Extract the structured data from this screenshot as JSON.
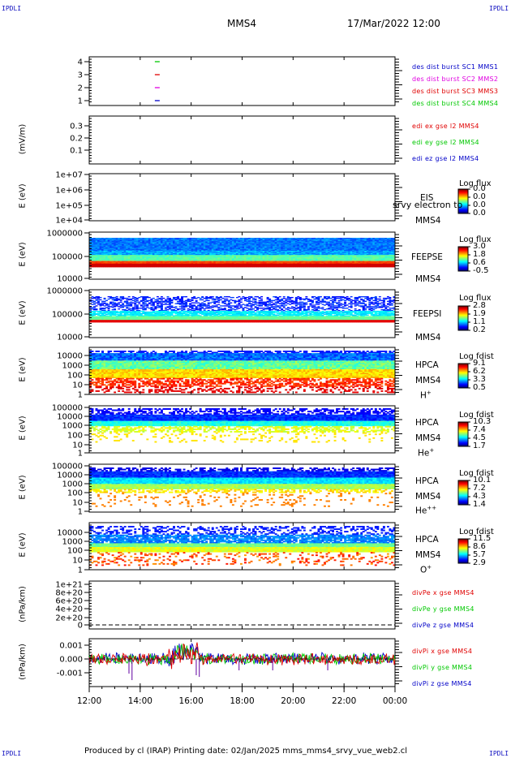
{
  "corners": {
    "tl": "IPDLI",
    "tr": "IPDLI",
    "bl": "IPDLI",
    "br": "IPDLI"
  },
  "header": {
    "spacecraft": "MMS4",
    "date": "17/Mar/2022 12:00"
  },
  "footer": {
    "text": "Produced by cl (IRAP)   Printing date: 02/Jan/2025   mms_mms4_srvy_vue_web2.cl"
  },
  "time_axis": {
    "ticks": [
      "12:00",
      "14:00",
      "16:00",
      "18:00",
      "20:00",
      "22:00",
      "00:00"
    ]
  },
  "colors": {
    "blue": "#0000c8",
    "magenta": "#e000e0",
    "red": "#e00000",
    "green": "#00c800"
  },
  "chart_data": [
    {
      "type": "scatter",
      "id": "burst",
      "ylim": [
        0.5,
        4.5
      ],
      "yticks": [
        "1",
        "2",
        "3",
        "4"
      ],
      "series": [
        {
          "name": "des dist burst SC1 MMS1",
          "color": "#0000c8",
          "x": [
            "14:40"
          ],
          "y": [
            1
          ]
        },
        {
          "name": "des dist burst SC2 MMS2",
          "color": "#e000e0",
          "x": [
            "14:40"
          ],
          "y": [
            2
          ]
        },
        {
          "name": "des dist burst SC3 MMS3",
          "color": "#e00000",
          "x": [
            "14:40"
          ],
          "y": [
            3
          ]
        },
        {
          "name": "des dist burst SC4 MMS4",
          "color": "#00c800",
          "x": [
            "14:40"
          ],
          "y": [
            4
          ]
        }
      ]
    },
    {
      "type": "line",
      "id": "edi",
      "ylabel": "(mV/m)",
      "yticks": [
        "0.1",
        "0.2",
        "0.3"
      ],
      "series": [
        {
          "name": "edi ex gse l2 MMS4",
          "color": "#e00000"
        },
        {
          "name": "edi ey gse l2 MMS4",
          "color": "#00c800"
        },
        {
          "name": "edi ez gse l2 MMS4",
          "color": "#0000c8"
        }
      ]
    },
    {
      "type": "heatmap",
      "id": "eis",
      "ylabel": "E (eV)",
      "yticks": [
        "1e+04",
        "1e+05",
        "1e+06",
        "1e+07"
      ],
      "labels": [
        "EIS",
        "MMS4"
      ],
      "overlay": "srvy electron to",
      "colorbar": {
        "title": "Log flux",
        "ticks": [
          "0.0",
          "0.0",
          "0.0",
          "0.0"
        ]
      }
    },
    {
      "type": "heatmap",
      "id": "feepse",
      "ylabel": "E (eV)",
      "yticks": [
        "10000",
        "100000",
        "1000000"
      ],
      "labels": [
        "FEEPSE",
        "MMS4"
      ],
      "colorbar": {
        "title": "Log flux",
        "ticks": [
          "3.0",
          "1.8",
          "0.6",
          "-0.5"
        ]
      }
    },
    {
      "type": "heatmap",
      "id": "feepsi",
      "ylabel": "E (eV)",
      "yticks": [
        "10000",
        "100000",
        "1000000"
      ],
      "labels": [
        "FEEPSI",
        "MMS4"
      ],
      "colorbar": {
        "title": "Log flux",
        "ticks": [
          "2.8",
          "1.9",
          "1.1",
          "0.2"
        ]
      }
    },
    {
      "type": "heatmap",
      "id": "hpca_h",
      "ylabel": "E (eV)",
      "yticks": [
        "1",
        "10",
        "100",
        "1000",
        "10000"
      ],
      "labels": [
        "HPCA",
        "MMS4"
      ],
      "ion": "H",
      "ion_sup": "+",
      "colorbar": {
        "title": "Log fdist",
        "ticks": [
          "9.1",
          "6.2",
          "3.3",
          "0.5"
        ]
      }
    },
    {
      "type": "heatmap",
      "id": "hpca_he",
      "ylabel": "E (eV)",
      "yticks": [
        "1",
        "10",
        "100",
        "1000",
        "10000",
        "100000"
      ],
      "labels": [
        "HPCA",
        "MMS4"
      ],
      "ion": "He",
      "ion_sup": "+",
      "colorbar": {
        "title": "Log fdist",
        "ticks": [
          "10.3",
          "7.4",
          "4.5",
          "1.7"
        ]
      }
    },
    {
      "type": "heatmap",
      "id": "hpca_hepp",
      "ylabel": "E (eV)",
      "yticks": [
        "1",
        "10",
        "100",
        "1000",
        "10000",
        "100000"
      ],
      "labels": [
        "HPCA",
        "MMS4"
      ],
      "ion": "He",
      "ion_sup": "++",
      "colorbar": {
        "title": "Log fdist",
        "ticks": [
          "10.1",
          "7.2",
          "4.3",
          "1.4"
        ]
      }
    },
    {
      "type": "heatmap",
      "id": "hpca_o",
      "ylabel": "E (eV)",
      "yticks": [
        "1",
        "10",
        "100",
        "1000",
        "10000"
      ],
      "labels": [
        "HPCA",
        "MMS4"
      ],
      "ion": "O",
      "ion_sup": "+",
      "colorbar": {
        "title": "Log fdist",
        "ticks": [
          "11.5",
          "8.6",
          "5.7",
          "2.9"
        ]
      }
    },
    {
      "type": "line",
      "id": "divpe",
      "ylabel": "(nPa/km)",
      "yticks": [
        "0",
        "2e+20",
        "4e+20",
        "6e+20",
        "8e+20",
        "1e+21"
      ],
      "series": [
        {
          "name": "divPe x gse MMS4",
          "color": "#e00000"
        },
        {
          "name": "divPe y gse MMS4",
          "color": "#00c800"
        },
        {
          "name": "divPe z gse MMS4",
          "color": "#0000c8"
        }
      ]
    },
    {
      "type": "line",
      "id": "divpi",
      "ylabel": "(nPa/km)",
      "yticks": [
        "-0.001",
        "0.000",
        "0.001"
      ],
      "series": [
        {
          "name": "divPi x gse MMS4",
          "color": "#e00000"
        },
        {
          "name": "divPi y gse MMS4",
          "color": "#00c800"
        },
        {
          "name": "divPi z gse MMS4",
          "color": "#0000c8"
        }
      ]
    }
  ]
}
